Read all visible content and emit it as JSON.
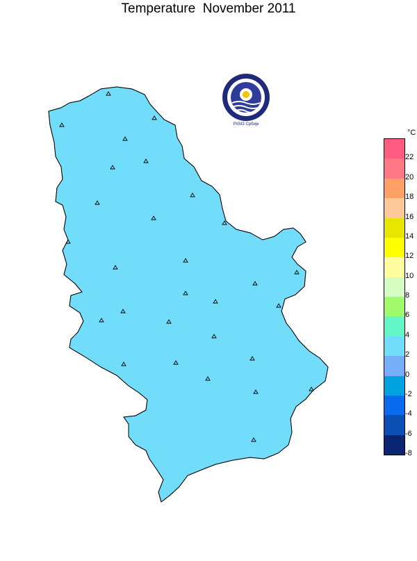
{
  "title": "Temperature  November 2011",
  "logo": {
    "caption": "РХМЗ Србије"
  },
  "colors": {
    "region_main": "#72DDFB",
    "region_cold": "#76AEF9",
    "region_warm": "#64F6C7",
    "station_marker": "#000000",
    "border": "#000000"
  },
  "legend": {
    "unit": "°C",
    "bins": [
      {
        "label": "-8",
        "color": "#0A2672"
      },
      {
        "label": "-6",
        "color": "#0A4FB4"
      },
      {
        "label": "-4",
        "color": "#0A6BEE"
      },
      {
        "label": "-2",
        "color": "#00A3E0"
      },
      {
        "label": "0",
        "color": "#76AEF9"
      },
      {
        "label": "2",
        "color": "#72DDFB"
      },
      {
        "label": "4",
        "color": "#64F6C7"
      },
      {
        "label": "6",
        "color": "#A0FA6C"
      },
      {
        "label": "8",
        "color": "#D7FCC2"
      },
      {
        "label": "10",
        "color": "#FEFE9E"
      },
      {
        "label": "12",
        "color": "#FEFE00"
      },
      {
        "label": "14",
        "color": "#E6E600"
      },
      {
        "label": "16",
        "color": "#FFC898"
      },
      {
        "label": "18",
        "color": "#FFA064"
      },
      {
        "label": "20",
        "color": "#FF7886"
      },
      {
        "label": "22",
        "color": "#FF5A82"
      }
    ]
  }
}
